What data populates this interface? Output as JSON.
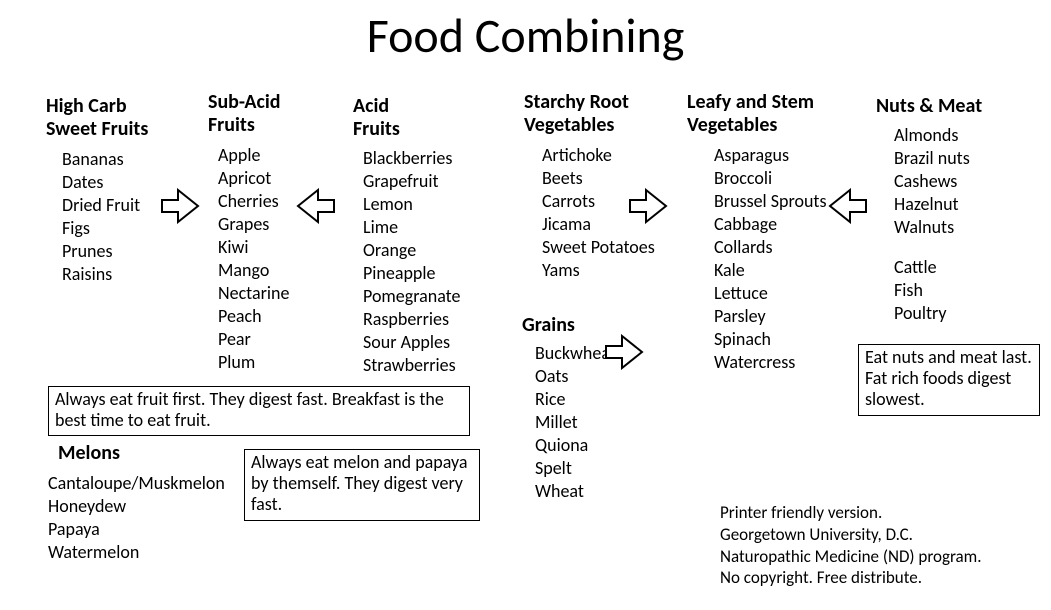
{
  "figure": {
    "type": "infographic",
    "background_color": "#ffffff",
    "text_color": "#000000",
    "arrow_stroke": "#000000",
    "arrow_fill": "#ffffff",
    "arrow_stroke_width": 2,
    "title_fontsize": 48,
    "heading_fontsize": 20,
    "body_fontsize": 18,
    "note_border_color": "#000000"
  },
  "title": "Food Combining",
  "columns": {
    "high_carb_sweet_fruits": {
      "heading": "High Carb\nSweet Fruits",
      "items": [
        "Bananas",
        "Dates",
        "Dried Fruit",
        "Figs",
        "Prunes",
        "Raisins"
      ]
    },
    "sub_acid_fruits": {
      "heading": "Sub-Acid\nFruits",
      "items": [
        "Apple",
        "Apricot",
        "Cherries",
        "Grapes",
        "Kiwi",
        "Mango",
        "Nectarine",
        "Peach",
        "Pear",
        "Plum"
      ]
    },
    "acid_fruits": {
      "heading": "Acid\nFruits",
      "items": [
        "Blackberries",
        "Grapefruit",
        "Lemon",
        "Lime",
        "Orange",
        "Pineapple",
        "Pomegranate",
        "Raspberries",
        "Sour Apples",
        "Strawberries"
      ]
    },
    "starchy_root_vegetables": {
      "heading": "Starchy Root\nVegetables",
      "items": [
        "Artichoke",
        "Beets",
        "Carrots",
        "Jicama",
        "Sweet Potatoes",
        "Yams"
      ]
    },
    "leafy_stem_vegetables": {
      "heading": "Leafy and Stem\nVegetables",
      "items": [
        "Asparagus",
        "Broccoli",
        "Brussel Sprouts",
        "Cabbage",
        "Collards",
        "Kale",
        "Lettuce",
        "Parsley",
        "Spinach",
        "Watercress"
      ]
    },
    "nuts_and_meat": {
      "heading": "Nuts & Meat",
      "group_nuts": [
        "Almonds",
        "Brazil nuts",
        "Cashews",
        "Hazelnut",
        "Walnuts"
      ],
      "group_meat": [
        "Cattle",
        "Fish",
        "Poultry"
      ]
    },
    "grains": {
      "heading": "Grains",
      "items": [
        "Buckwheat",
        "Oats",
        "Rice",
        "Millet",
        "Quiona",
        "Spelt",
        "Wheat"
      ]
    },
    "melons": {
      "heading": "Melons",
      "items": [
        "Cantaloupe/Muskmelon",
        "Honeydew",
        "Papaya",
        "Watermelon"
      ]
    }
  },
  "notes": {
    "fruit": "Always eat fruit first. They digest fast. Breakfast is the best time to eat fruit.",
    "melon": "Always eat melon and papaya by themself. They digest very fast.",
    "nuts": "Eat nuts and meat last. Fat rich foods digest slowest."
  },
  "footer": {
    "line1": "Printer friendly version.",
    "line2": "Georgetown University, D.C.",
    "line3": "Naturopathic Medicine (ND) program.",
    "line4": "No copyright. Free distribute."
  },
  "arrows": [
    {
      "id": "arr-c1-right",
      "direction": "right",
      "from": "high_carb_sweet_fruits",
      "to": "sub_acid_fruits"
    },
    {
      "id": "arr-c3-left",
      "direction": "left",
      "from": "acid_fruits",
      "to": "sub_acid_fruits"
    },
    {
      "id": "arr-c4-right",
      "direction": "right",
      "from": "starchy_root_vegetables",
      "to": "leafy_stem_vegetables"
    },
    {
      "id": "arr-c6-left",
      "direction": "left",
      "from": "nuts_and_meat",
      "to": "leafy_stem_vegetables"
    },
    {
      "id": "arr-c7-right",
      "direction": "right",
      "from": "grains",
      "to": "leafy_stem_vegetables"
    }
  ]
}
